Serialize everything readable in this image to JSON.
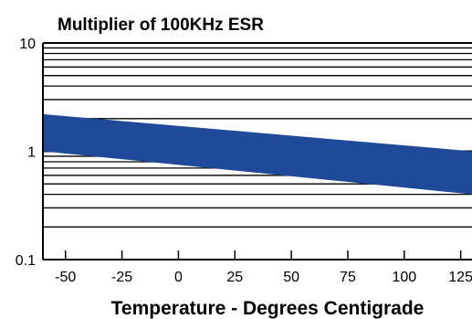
{
  "chart_data": {
    "type": "area",
    "title": "Multiplier of 100KHz ESR",
    "xlabel": "Temperature - Degrees Centigrade",
    "ylabel": "",
    "x_ticks": [
      "-50",
      "-25",
      "0",
      "25",
      "50",
      "75",
      "100",
      "125"
    ],
    "y_ticks": [
      "10",
      "1",
      "0.1"
    ],
    "xlim": [
      -60,
      130
    ],
    "ylim": [
      0.1,
      10
    ],
    "y_scale": "log",
    "grid": "horizontal",
    "band": {
      "x": [
        -60,
        130
      ],
      "upper": [
        2.2,
        1.0
      ],
      "lower": [
        1.0,
        0.4
      ]
    },
    "colors": {
      "band": "#1f4a99",
      "grid": "#000000"
    }
  }
}
